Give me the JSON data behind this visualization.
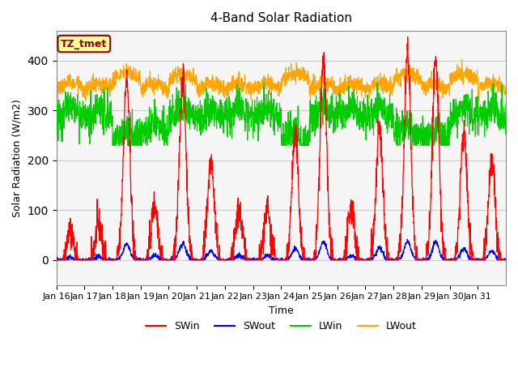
{
  "title": "4-Band Solar Radiation",
  "xlabel": "Time",
  "ylabel": "Solar Radiation (W/m2)",
  "ylim": [
    -50,
    460
  ],
  "annotation_text": "TZ_tmet",
  "annotation_color": "#8B0000",
  "annotation_bg": "#FFFF99",
  "x_tick_labels": [
    "Jan 16",
    "Jan 17",
    "Jan 18",
    "Jan 19",
    "Jan 20",
    "Jan 21",
    "Jan 22",
    "Jan 23",
    "Jan 24",
    "Jan 25",
    "Jan 26",
    "Jan 27",
    "Jan 28",
    "Jan 29",
    "Jan 30",
    "Jan 31"
  ],
  "colors": {
    "SWin": "#FF0000",
    "SWout": "#0000FF",
    "LWin": "#00CC00",
    "LWout": "#FFA500"
  },
  "grid_color": "#CCCCCC",
  "plot_bg": "#F5F5F5",
  "SWin_peaks": [
    60,
    70,
    360,
    110,
    370,
    200,
    100,
    100,
    250,
    400,
    100,
    260,
    420,
    400,
    260,
    200
  ]
}
